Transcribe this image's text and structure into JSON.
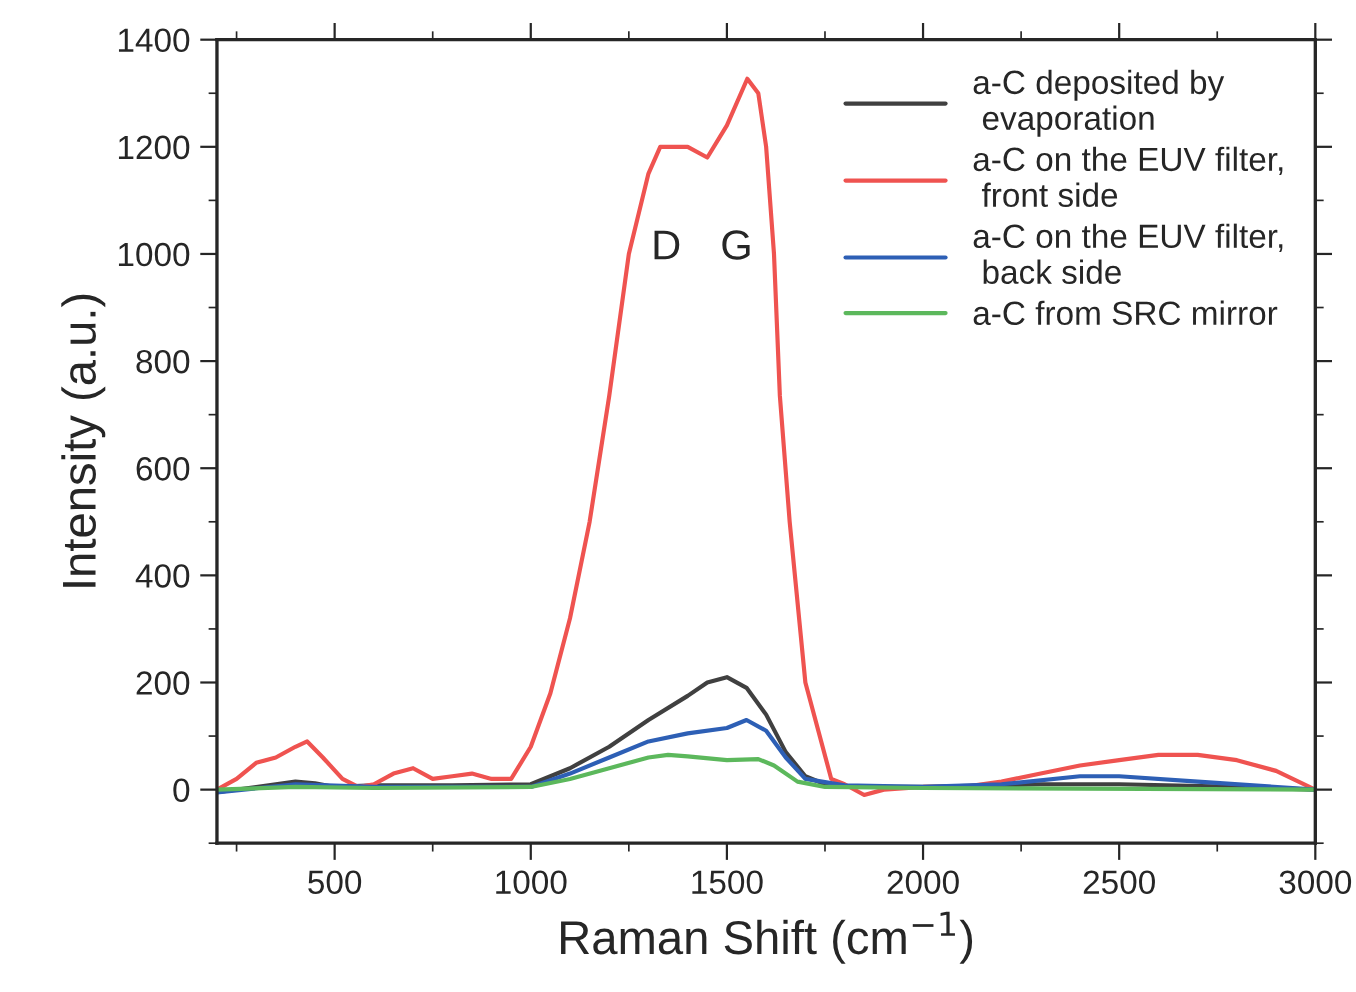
{
  "chart_data": {
    "type": "line",
    "xlabel": "Raman Shift (cm$^{−1}$)",
    "ylabel": "Intensity (a.u.)",
    "xlim": [
      200,
      3000
    ],
    "xticks": [
      500,
      1000,
      1500,
      2000,
      2500,
      3000
    ],
    "ylim": [
      -100,
      1400
    ],
    "yticks": [
      0,
      200,
      400,
      600,
      800,
      1000,
      1200,
      1400
    ],
    "grid": false,
    "legend": "top right",
    "marker": "none",
    "line_style": "solid",
    "annotations": [
      "D",
      "G"
    ],
    "series": [
      {
        "name": "a-C deposited by\n evaporation",
        "color": "#404040",
        "x": [
          200,
          300,
          400,
          450,
          500,
          600,
          800,
          1000,
          1100,
          1200,
          1300,
          1400,
          1450,
          1500,
          1550,
          1600,
          1650,
          1700,
          1750,
          1800,
          2000,
          2300,
          2500,
          2800,
          3000
        ],
        "values": [
          -5,
          5,
          15,
          12,
          5,
          8,
          8,
          10,
          40,
          80,
          130,
          175,
          200,
          210,
          190,
          140,
          70,
          25,
          10,
          5,
          5,
          10,
          10,
          5,
          0
        ]
      },
      {
        "name": "a-C on the EUV filter,\n front side",
        "color": "#ef5350",
        "x": [
          200,
          250,
          300,
          350,
          400,
          430,
          470,
          520,
          560,
          600,
          650,
          700,
          750,
          800,
          850,
          900,
          950,
          1000,
          1050,
          1100,
          1150,
          1200,
          1250,
          1300,
          1330,
          1400,
          1450,
          1500,
          1552,
          1580,
          1600,
          1620,
          1635,
          1660,
          1700,
          1766,
          1800,
          1850,
          1900,
          2000,
          2100,
          2200,
          2300,
          2400,
          2500,
          2600,
          2700,
          2800,
          2900,
          3000
        ],
        "values": [
          0,
          20,
          50,
          60,
          80,
          90,
          60,
          20,
          5,
          10,
          30,
          40,
          20,
          25,
          30,
          20,
          20,
          80,
          180,
          320,
          500,
          735,
          1000,
          1150,
          1200,
          1200,
          1180,
          1240,
          1327,
          1300,
          1200,
          1000,
          735,
          500,
          200,
          20,
          10,
          -10,
          0,
          5,
          5,
          15,
          30,
          45,
          55,
          65,
          65,
          55,
          35,
          0
        ]
      },
      {
        "name": "a-C on the EUV filter,\n back side",
        "color": "#2d5fb5",
        "x": [
          200,
          400,
          600,
          1000,
          1100,
          1200,
          1300,
          1400,
          1500,
          1550,
          1600,
          1650,
          1700,
          1800,
          2000,
          2200,
          2400,
          2500,
          2700,
          3000
        ],
        "values": [
          -5,
          10,
          5,
          5,
          30,
          60,
          90,
          105,
          115,
          130,
          110,
          60,
          20,
          8,
          5,
          10,
          25,
          25,
          15,
          0
        ]
      },
      {
        "name": "a-C from SRC mirror",
        "color": "#5cb85c",
        "x": [
          200,
          400,
          600,
          1000,
          1100,
          1200,
          1300,
          1350,
          1400,
          1500,
          1580,
          1620,
          1680,
          1750,
          2000,
          3000
        ],
        "values": [
          0,
          5,
          3,
          5,
          20,
          40,
          60,
          65,
          62,
          55,
          57,
          45,
          15,
          5,
          3,
          0
        ]
      }
    ]
  }
}
